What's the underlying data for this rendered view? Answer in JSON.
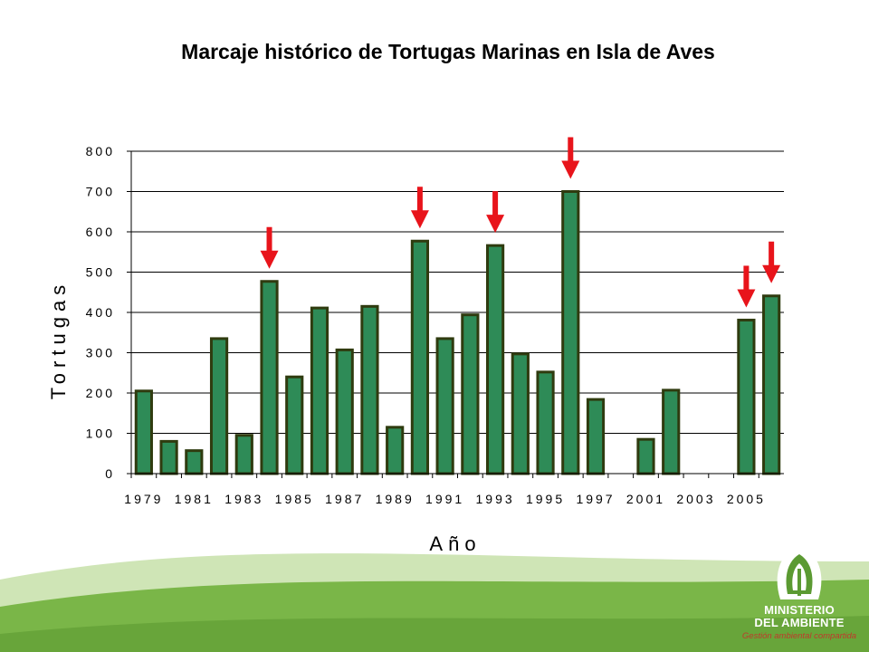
{
  "slide": {
    "title": "Marcaje histórico de Tortugas Marinas en Isla de Aves",
    "brand": {
      "line1": "MINISTERIO",
      "line2": "DEL AMBIENTE",
      "tagline": "Gestión ambiental compartida"
    }
  },
  "colors": {
    "bar_fill": "#2e8b57",
    "bar_stroke": "#2f3b0f",
    "arrow": "#e8141b",
    "footer_green": "#7ab648",
    "footer_light": "#a8d07a"
  },
  "chart_data": {
    "type": "bar",
    "title": "Marcaje histórico de Tortugas Marinas en Isla de Aves",
    "xlabel": "Año",
    "ylabel": "Tortugas",
    "ylim": [
      0,
      800
    ],
    "yticks": [
      "0",
      "100",
      "200",
      "300",
      "400",
      "500",
      "600",
      "700",
      "800"
    ],
    "xtick_labels": [
      "1979",
      "1981",
      "1983",
      "1985",
      "1987",
      "1989",
      "1991",
      "1993",
      "1995",
      "1997",
      "2001",
      "2003",
      "2005"
    ],
    "grid": true,
    "legend": "none",
    "categories": [
      "1979",
      "1980",
      "1981",
      "1982",
      "1983",
      "1984",
      "1985",
      "1986",
      "1987",
      "1988",
      "1989",
      "1990",
      "1991",
      "1992",
      "1993",
      "1994",
      "1995",
      "1996",
      "1997",
      "1998",
      "2001",
      "2002",
      "2003",
      "2004",
      "2005",
      "2006"
    ],
    "values": [
      205,
      80,
      57,
      335,
      95,
      477,
      240,
      411,
      307,
      415,
      115,
      577,
      335,
      394,
      566,
      297,
      252,
      700,
      184,
      0,
      85,
      207,
      0,
      0,
      381,
      441
    ],
    "highlighted": [
      "1984",
      "1990",
      "1993",
      "1996",
      "2005",
      "2006"
    ]
  }
}
